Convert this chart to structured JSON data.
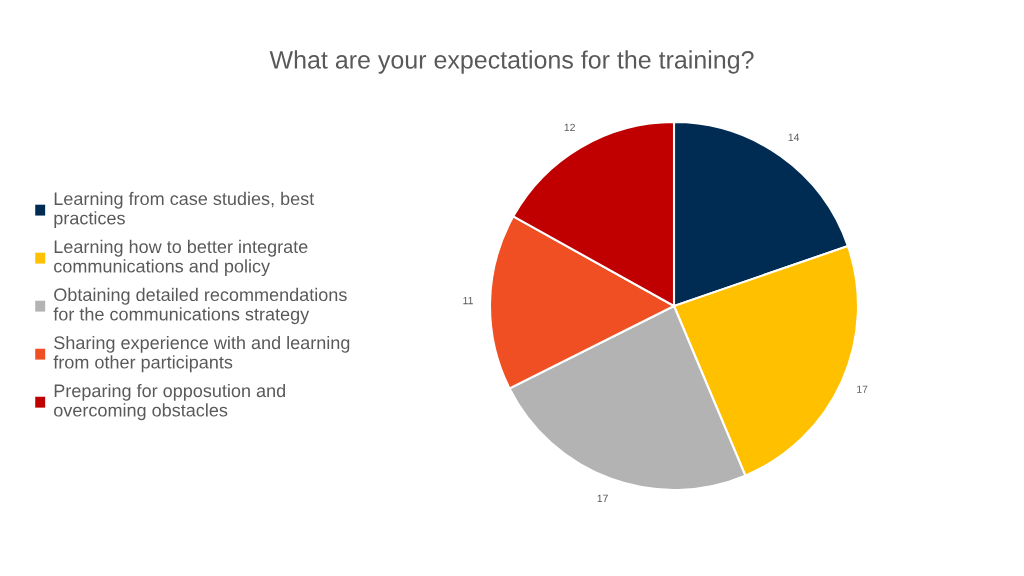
{
  "chart_data": {
    "type": "pie",
    "title": "What are your expectations for the training?",
    "categories": [
      "Learning from case studies, best\npractices",
      "Learning how to better integrate\ncommunications and policy",
      "Obtaining detailed recommendations\nfor the communications strategy",
      "Sharing experience with and learning\nfrom other participants",
      "Preparing for opposution and\novercoming obstacles"
    ],
    "values": [
      14,
      17,
      17,
      11,
      12
    ],
    "colors": [
      "#002c54",
      "#ffc000",
      "#b3b3b3",
      "#f04e23",
      "#c00000"
    ],
    "data_labels": true,
    "legend": "left"
  }
}
